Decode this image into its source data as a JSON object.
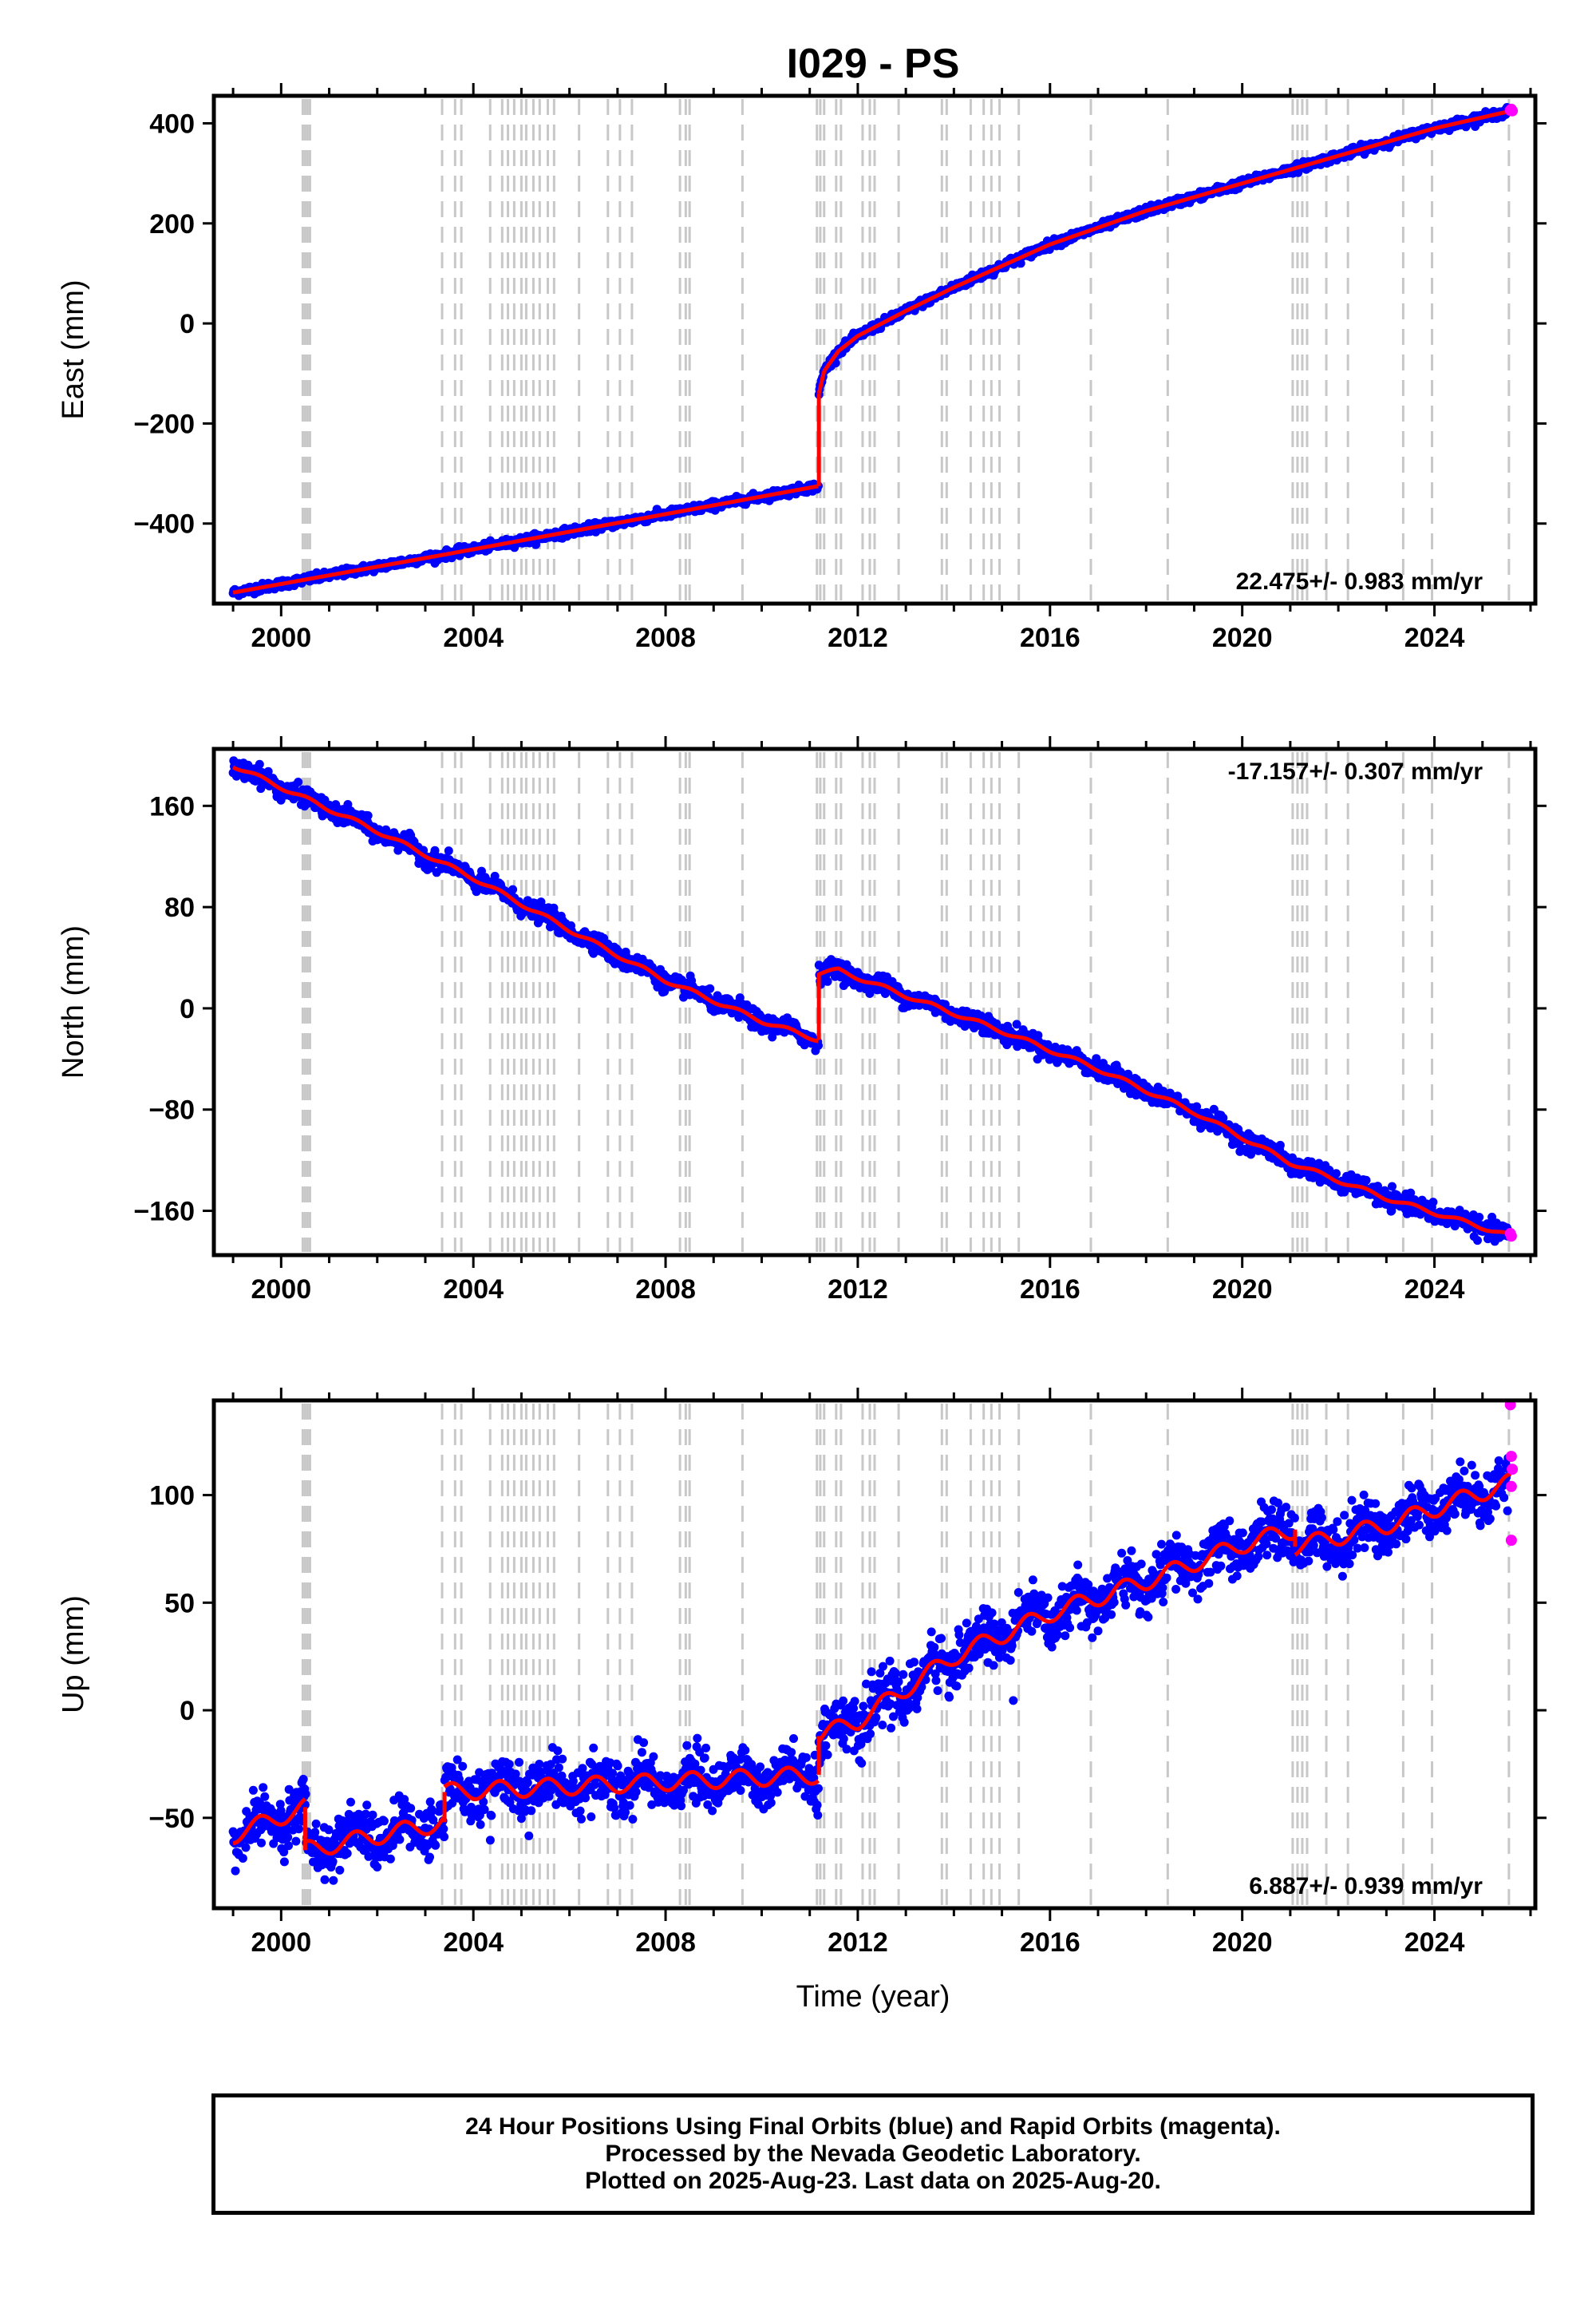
{
  "title": "I029 - PS",
  "xlabel": "Time (year)",
  "colors": {
    "final_orbits": "#0000ff",
    "rapid_orbits": "#ff00ff",
    "model": "#ff0000",
    "event_lines": "#c8c8c8"
  },
  "caption": {
    "line1": "24 Hour Positions Using Final Orbits (blue) and Rapid Orbits (magenta).",
    "line2": "Processed by the Nevada Geodetic Laboratory.",
    "line3": "Plotted on 2025-Aug-23. Last data on 2025-Aug-20."
  },
  "chart_data": [
    {
      "type": "scatter",
      "ylabel": "East (mm)",
      "rate_label": "22.475+/- 0.983 mm/yr",
      "rate_position": "bottom-right",
      "xlim": [
        1998.6,
        2026.1
      ],
      "ylim": [
        -560,
        455
      ],
      "xticks": [
        2000,
        2004,
        2008,
        2012,
        2016,
        2020,
        2024
      ],
      "yticks": [
        -400,
        -200,
        0,
        200,
        400
      ],
      "series": [
        {
          "kind": "trend",
          "segments": [
            {
              "x": [
                1999.0,
                2003.4,
                2011.19
              ],
              "y": [
                -538,
                -462,
                -325
              ]
            },
            {
              "x": [
                2011.19,
                2011.3,
                2011.6,
                2012.0,
                2013.0,
                2014.0,
                2016.0,
                2018.0,
                2020.0,
                2022.0,
                2024.0,
                2025.6
              ],
              "y": [
                -140,
                -95,
                -55,
                -25,
                25,
                72,
                158,
                225,
                280,
                335,
                390,
                425
              ]
            }
          ]
        }
      ],
      "rapid_points": {
        "x": [
          2025.58,
          2025.6,
          2025.62
        ],
        "y": [
          426,
          428,
          425
        ]
      }
    },
    {
      "type": "scatter",
      "ylabel": "North (mm)",
      "rate_label": "-17.157+/- 0.307 mm/yr",
      "rate_position": "top-right",
      "xlim": [
        1998.6,
        2026.1
      ],
      "ylim": [
        -195,
        205
      ],
      "xticks": [
        2000,
        2004,
        2008,
        2012,
        2016,
        2020,
        2024
      ],
      "yticks": [
        -160,
        -80,
        0,
        80,
        160
      ],
      "series": [
        {
          "kind": "trend",
          "segments": [
            {
              "x": [
                1999.0,
                2002.0,
                2004.0,
                2006.0,
                2008.0,
                2010.0,
                2011.19
              ],
              "y": [
                192,
                140,
                103,
                62,
                22,
                -10,
                -25
              ]
            },
            {
              "x": [
                2011.19,
                2011.6,
                2013.0,
                2015.0,
                2017.0,
                2019.0,
                2021.0,
                2023.0,
                2025.6
              ],
              "y": [
                28,
                30,
                10,
                -18,
                -48,
                -82,
                -122,
                -150,
                -180
              ]
            }
          ]
        }
      ],
      "rapid_points": {
        "x": [
          2025.58,
          2025.6
        ],
        "y": [
          -178,
          -180
        ]
      }
    },
    {
      "type": "scatter",
      "ylabel": "Up (mm)",
      "rate_label": "6.887+/- 0.939 mm/yr",
      "rate_position": "bottom-right",
      "xlim": [
        1998.6,
        2026.1
      ],
      "ylim": [
        -92,
        144
      ],
      "xticks": [
        2000,
        2004,
        2008,
        2012,
        2016,
        2020,
        2024
      ],
      "yticks": [
        -50,
        0,
        50,
        100
      ],
      "series": [
        {
          "kind": "trend",
          "segments": [
            {
              "x": [
                1999.0,
                2000.5
              ],
              "y": [
                -58,
                -45
              ]
            },
            {
              "x": [
                2000.5,
                2003.4
              ],
              "y": [
                -65,
                -52
              ]
            },
            {
              "x": [
                2003.4,
                2011.19
              ],
              "y": [
                -38,
                -30
              ]
            },
            {
              "x": [
                2011.19,
                2012.0,
                2014.0,
                2016.0,
                2018.0,
                2020.0,
                2021.1
              ],
              "y": [
                -12,
                -5,
                25,
                45,
                60,
                77,
                84
              ]
            },
            {
              "x": [
                2021.1,
                2023.0,
                2025.6
              ],
              "y": [
                76,
                86,
                106
              ]
            }
          ]
        }
      ],
      "rapid_points": {
        "x": [
          2025.58,
          2025.6,
          2025.6,
          2025.62,
          2025.6
        ],
        "y": [
          142,
          118,
          104,
          112,
          79
        ]
      }
    }
  ],
  "event_lines": [
    2000.45,
    2000.5,
    2000.55,
    2000.6,
    2003.35,
    2003.62,
    2003.75,
    2004.35,
    2004.6,
    2004.72,
    2004.85,
    2005.0,
    2005.1,
    2005.25,
    2005.38,
    2005.55,
    2005.68,
    2006.2,
    2006.8,
    2007.05,
    2007.3,
    2008.3,
    2008.42,
    2008.5,
    2009.6,
    2011.15,
    2011.22,
    2011.3,
    2011.55,
    2011.65,
    2012.1,
    2012.25,
    2012.35,
    2012.85,
    2013.75,
    2013.85,
    2014.35,
    2014.62,
    2014.78,
    2014.95,
    2015.35,
    2016.85,
    2018.45,
    2021.05,
    2021.15,
    2021.25,
    2021.35,
    2021.75,
    2022.2,
    2023.35,
    2023.95,
    2025.55
  ]
}
